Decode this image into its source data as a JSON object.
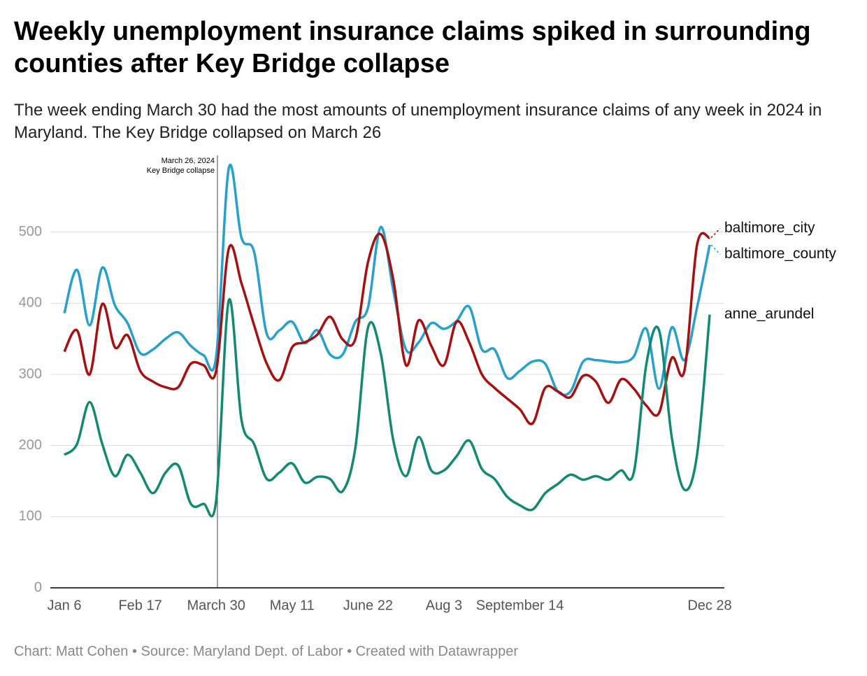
{
  "chart_data": {
    "type": "line",
    "title": "Weekly unemployment insurance claims spiked in surrounding counties after Key Bridge collapse",
    "subtitle": "The week ending March 30 had the most amounts of unemployment insurance claims of any week in 2024 in Maryland. The Key Bridge collapsed on March 26",
    "source": "Chart: Matt Cohen • Source: Maryland Dept. of Labor • Created with Datawrapper",
    "annotation": [
      "March 26, 2024",
      "Key Bridge collapse"
    ],
    "categories": [
      "Jan 6",
      null,
      null,
      null,
      null,
      null,
      "Feb 17",
      null,
      null,
      null,
      null,
      null,
      "March 30",
      null,
      null,
      null,
      null,
      null,
      "May 11",
      null,
      null,
      null,
      null,
      null,
      "June 22",
      null,
      null,
      null,
      null,
      null,
      "Aug 3",
      null,
      null,
      null,
      null,
      null,
      "September 14",
      null,
      null,
      null,
      null,
      null,
      null,
      null,
      null,
      null,
      null,
      null,
      null,
      null,
      null,
      "Dec 28"
    ],
    "series": [
      {
        "name": "baltimore_county",
        "color": "#26a0cf",
        "values": [
          386,
          447,
          369,
          450,
          397,
          372,
          330,
          335,
          350,
          359,
          340,
          327,
          325,
          590,
          492,
          472,
          357,
          362,
          374,
          344,
          362,
          328,
          328,
          374,
          394,
          507,
          418,
          335,
          345,
          372,
          364,
          375,
          395,
          335,
          335,
          295,
          305,
          318,
          315,
          276,
          276,
          318,
          320,
          318,
          317,
          325,
          364,
          280,
          366,
          320,
          394,
          482
        ]
      },
      {
        "name": "baltimore_city",
        "color": "#a80f0f",
        "values": [
          332,
          362,
          300,
          399,
          338,
          355,
          305,
          290,
          282,
          282,
          315,
          313,
          305,
          477,
          428,
          369,
          315,
          292,
          338,
          345,
          356,
          381,
          349,
          350,
          458,
          497,
          433,
          313,
          376,
          340,
          313,
          374,
          345,
          300,
          281,
          266,
          251,
          231,
          281,
          276,
          268,
          298,
          290,
          260,
          293,
          280,
          256,
          246,
          323,
          305,
          482,
          492
        ]
      },
      {
        "name": "anne_arundel",
        "color": "#128a72",
        "values": [
          187,
          202,
          261,
          202,
          157,
          187,
          162,
          133,
          162,
          172,
          118,
          118,
          123,
          404,
          236,
          202,
          153,
          162,
          175,
          148,
          156,
          153,
          136,
          197,
          366,
          330,
          207,
          157,
          212,
          165,
          165,
          185,
          207,
          167,
          153,
          128,
          116,
          110,
          133,
          146,
          159,
          152,
          157,
          152,
          165,
          162,
          315,
          362,
          212,
          138,
          187,
          384
        ]
      }
    ],
    "ylim": [
      0,
      600
    ],
    "yticks": [
      0,
      100,
      200,
      300,
      400,
      500
    ],
    "grid": true
  }
}
